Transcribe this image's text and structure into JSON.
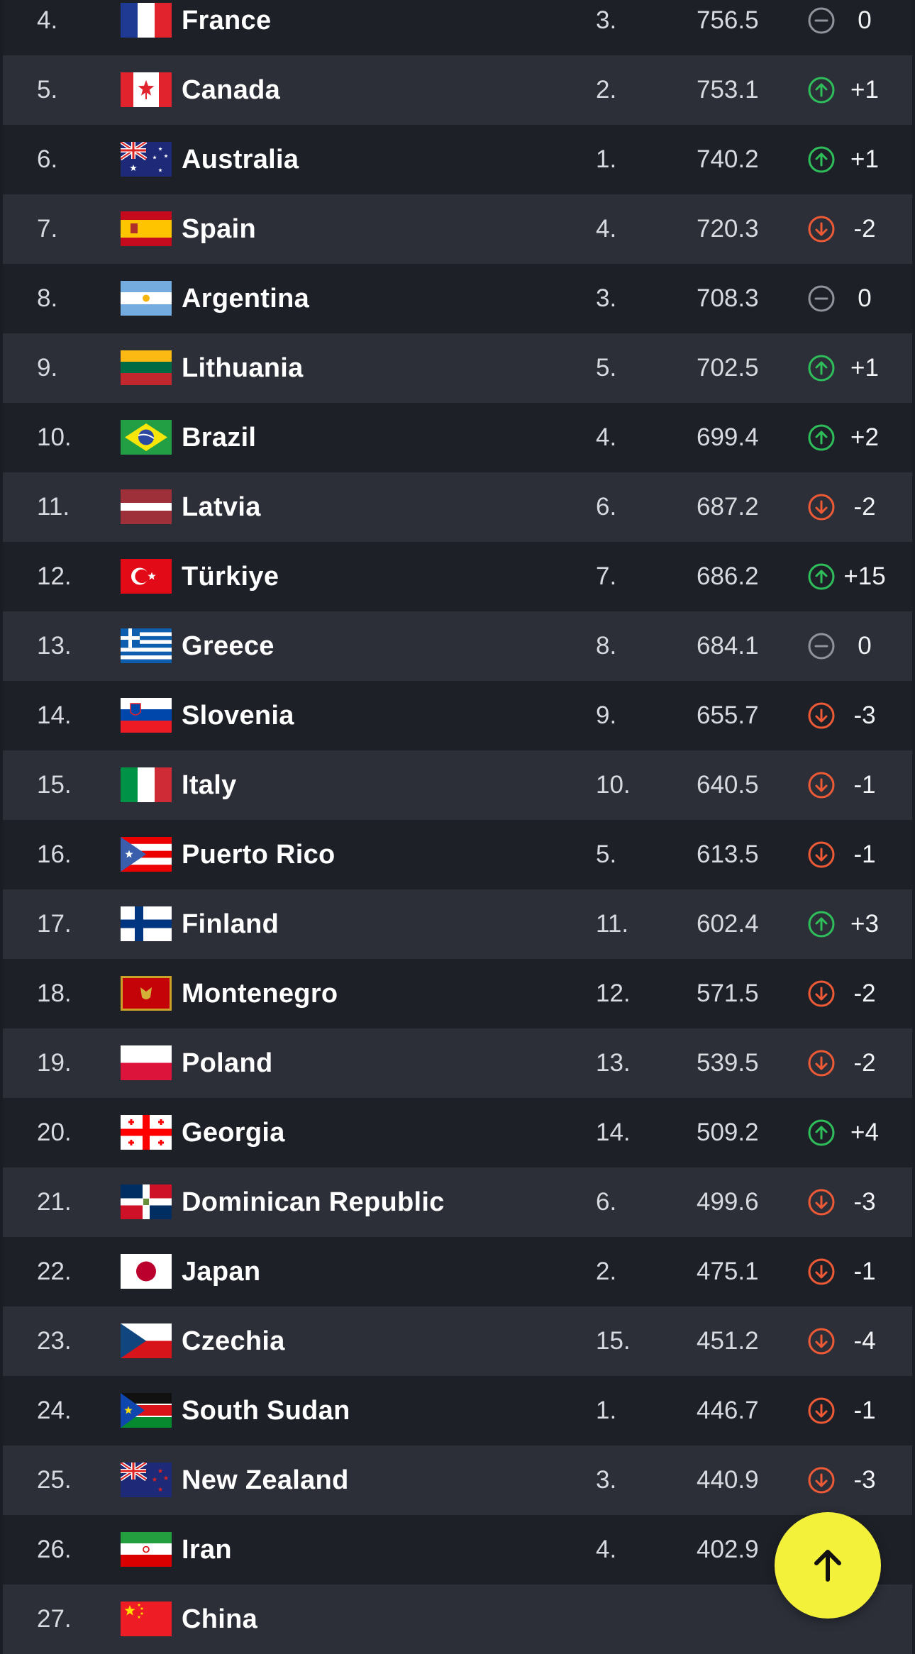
{
  "rankings": [
    {
      "rank": "4.",
      "country": "France",
      "flag": "fr",
      "conf_rank": "3.",
      "points": "756.5",
      "trend": "same",
      "change": "0"
    },
    {
      "rank": "5.",
      "country": "Canada",
      "flag": "ca",
      "conf_rank": "2.",
      "points": "753.1",
      "trend": "up",
      "change": "+1"
    },
    {
      "rank": "6.",
      "country": "Australia",
      "flag": "au",
      "conf_rank": "1.",
      "points": "740.2",
      "trend": "up",
      "change": "+1"
    },
    {
      "rank": "7.",
      "country": "Spain",
      "flag": "es",
      "conf_rank": "4.",
      "points": "720.3",
      "trend": "down",
      "change": "-2"
    },
    {
      "rank": "8.",
      "country": "Argentina",
      "flag": "ar",
      "conf_rank": "3.",
      "points": "708.3",
      "trend": "same",
      "change": "0"
    },
    {
      "rank": "9.",
      "country": "Lithuania",
      "flag": "lt",
      "conf_rank": "5.",
      "points": "702.5",
      "trend": "up",
      "change": "+1"
    },
    {
      "rank": "10.",
      "country": "Brazil",
      "flag": "br",
      "conf_rank": "4.",
      "points": "699.4",
      "trend": "up",
      "change": "+2"
    },
    {
      "rank": "11.",
      "country": "Latvia",
      "flag": "lv",
      "conf_rank": "6.",
      "points": "687.2",
      "trend": "down",
      "change": "-2"
    },
    {
      "rank": "12.",
      "country": "Türkiye",
      "flag": "tr",
      "conf_rank": "7.",
      "points": "686.2",
      "trend": "up",
      "change": "+15"
    },
    {
      "rank": "13.",
      "country": "Greece",
      "flag": "gr",
      "conf_rank": "8.",
      "points": "684.1",
      "trend": "same",
      "change": "0"
    },
    {
      "rank": "14.",
      "country": "Slovenia",
      "flag": "si",
      "conf_rank": "9.",
      "points": "655.7",
      "trend": "down",
      "change": "-3"
    },
    {
      "rank": "15.",
      "country": "Italy",
      "flag": "it",
      "conf_rank": "10.",
      "points": "640.5",
      "trend": "down",
      "change": "-1"
    },
    {
      "rank": "16.",
      "country": "Puerto Rico",
      "flag": "pr",
      "conf_rank": "5.",
      "points": "613.5",
      "trend": "down",
      "change": "-1"
    },
    {
      "rank": "17.",
      "country": "Finland",
      "flag": "fi",
      "conf_rank": "11.",
      "points": "602.4",
      "trend": "up",
      "change": "+3"
    },
    {
      "rank": "18.",
      "country": "Montenegro",
      "flag": "me",
      "conf_rank": "12.",
      "points": "571.5",
      "trend": "down",
      "change": "-2"
    },
    {
      "rank": "19.",
      "country": "Poland",
      "flag": "pl",
      "conf_rank": "13.",
      "points": "539.5",
      "trend": "down",
      "change": "-2"
    },
    {
      "rank": "20.",
      "country": "Georgia",
      "flag": "ge",
      "conf_rank": "14.",
      "points": "509.2",
      "trend": "up",
      "change": "+4"
    },
    {
      "rank": "21.",
      "country": "Dominican Republic",
      "flag": "do",
      "conf_rank": "6.",
      "points": "499.6",
      "trend": "down",
      "change": "-3"
    },
    {
      "rank": "22.",
      "country": "Japan",
      "flag": "jp",
      "conf_rank": "2.",
      "points": "475.1",
      "trend": "down",
      "change": "-1"
    },
    {
      "rank": "23.",
      "country": "Czechia",
      "flag": "cz",
      "conf_rank": "15.",
      "points": "451.2",
      "trend": "down",
      "change": "-4"
    },
    {
      "rank": "24.",
      "country": "South Sudan",
      "flag": "ss",
      "conf_rank": "1.",
      "points": "446.7",
      "trend": "down",
      "change": "-1"
    },
    {
      "rank": "25.",
      "country": "New Zealand",
      "flag": "nz",
      "conf_rank": "3.",
      "points": "440.9",
      "trend": "down",
      "change": "-3"
    },
    {
      "rank": "26.",
      "country": "Iran",
      "flag": "ir",
      "conf_rank": "4.",
      "points": "402.9",
      "trend": "",
      "change": ""
    },
    {
      "rank": "27.",
      "country": "China",
      "flag": "cn",
      "conf_rank": "",
      "points": "",
      "trend": "",
      "change": ""
    }
  ],
  "colors": {
    "up": "#2fbf5a",
    "down": "#ef5a36",
    "same": "#8f939c",
    "scroll_button": "#f4f13a"
  },
  "scroll_top_icon": "arrow-up-icon"
}
